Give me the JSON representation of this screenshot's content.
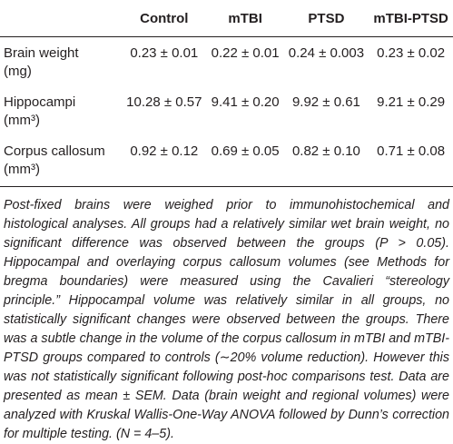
{
  "table": {
    "header": [
      "",
      "Control",
      "mTBI",
      "PTSD",
      "mTBI-PTSD"
    ],
    "rows": [
      [
        [
          "Brain weight",
          "(mg)"
        ],
        "0.23 ± 0.01",
        "0.22 ± 0.01",
        "0.24 ± 0.003",
        "0.23 ± 0.02"
      ],
      [
        [
          "Hippocampi",
          "(mm³)"
        ],
        "10.28 ± 0.57",
        "9.41 ± 0.20",
        "9.92 ± 0.61",
        "9.21 ± 0.29"
      ],
      [
        [
          "Corpus callosum",
          "(mm³)"
        ],
        "0.92 ± 0.12",
        "0.69 ± 0.05",
        "0.82 ± 0.10",
        "0.71 ± 0.08"
      ]
    ]
  },
  "caption": "Post-fixed brains were weighed prior to immunohistochemical and histological analyses. All groups had a relatively similar wet brain weight, no significant difference was observed between the groups (P > 0.05). Hippocampal and overlaying corpus callosum volumes (see Methods for bregma boundaries) were measured using the Cavalieri “stereology principle.” Hippocampal volume was relatively similar in all groups, no statistically significant changes were observed between the groups. There was a subtle change in the volume of the corpus callosum in mTBI and mTBI-PTSD groups compared to controls (∼20% volume reduction). However this was not statistically significant following post-hoc comparisons test. Data are presented as mean ± SEM. Data (brain weight and regional volumes) were analyzed with Kruskal Wallis-One-Way ANOVA followed by Dunn’s correction for multiple testing. (N = 4–5)."
}
